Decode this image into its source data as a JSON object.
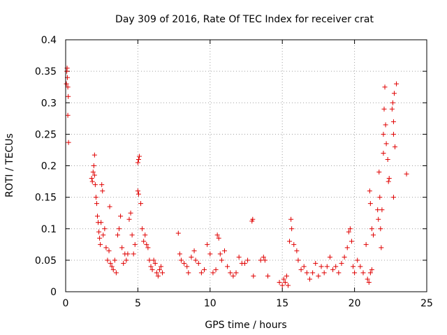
{
  "chart_data": {
    "type": "scatter",
    "title": "Day 309 of 2016, Rate Of TEC Index for receiver crat",
    "xlabel": "GPS time / hours",
    "ylabel": "ROTI / TECUs",
    "xlim": [
      0,
      25
    ],
    "ylim": [
      0,
      0.4
    ],
    "xticks": [
      "0",
      "5",
      "10",
      "15",
      "20",
      "25"
    ],
    "yticks": [
      "0",
      "0.05",
      "0.1",
      "0.15",
      "0.2",
      "0.25",
      "0.3",
      "0.35",
      "0.4"
    ],
    "grid": true,
    "marker": "+",
    "marker_color": "#e00000",
    "series": [
      {
        "name": "ROTI",
        "points": [
          [
            0.05,
            0.33
          ],
          [
            0.08,
            0.35
          ],
          [
            0.1,
            0.355
          ],
          [
            0.12,
            0.34
          ],
          [
            0.15,
            0.325
          ],
          [
            0.18,
            0.31
          ],
          [
            0.15,
            0.28
          ],
          [
            0.2,
            0.237
          ],
          [
            1.8,
            0.18
          ],
          [
            1.85,
            0.175
          ],
          [
            1.9,
            0.19
          ],
          [
            1.95,
            0.2
          ],
          [
            2.0,
            0.217
          ],
          [
            2.0,
            0.185
          ],
          [
            2.05,
            0.17
          ],
          [
            2.1,
            0.15
          ],
          [
            2.15,
            0.14
          ],
          [
            2.2,
            0.12
          ],
          [
            2.25,
            0.11
          ],
          [
            2.3,
            0.095
          ],
          [
            2.35,
            0.085
          ],
          [
            2.4,
            0.075
          ],
          [
            2.45,
            0.11
          ],
          [
            2.5,
            0.17
          ],
          [
            2.55,
            0.16
          ],
          [
            2.6,
            0.09
          ],
          [
            2.7,
            0.1
          ],
          [
            2.8,
            0.07
          ],
          [
            2.9,
            0.05
          ],
          [
            3.0,
            0.065
          ],
          [
            3.05,
            0.135
          ],
          [
            3.1,
            0.045
          ],
          [
            3.2,
            0.04
          ],
          [
            3.3,
            0.035
          ],
          [
            3.4,
            0.05
          ],
          [
            3.5,
            0.03
          ],
          [
            3.6,
            0.09
          ],
          [
            3.7,
            0.1
          ],
          [
            3.8,
            0.12
          ],
          [
            3.9,
            0.07
          ],
          [
            4.0,
            0.045
          ],
          [
            4.1,
            0.06
          ],
          [
            4.2,
            0.05
          ],
          [
            4.3,
            0.06
          ],
          [
            4.4,
            0.115
          ],
          [
            4.5,
            0.125
          ],
          [
            4.6,
            0.09
          ],
          [
            4.7,
            0.06
          ],
          [
            4.8,
            0.075
          ],
          [
            5.0,
            0.205
          ],
          [
            5.05,
            0.21
          ],
          [
            5.1,
            0.215
          ],
          [
            5.0,
            0.16
          ],
          [
            5.05,
            0.155
          ],
          [
            5.2,
            0.14
          ],
          [
            5.3,
            0.1
          ],
          [
            5.4,
            0.08
          ],
          [
            5.5,
            0.09
          ],
          [
            5.6,
            0.075
          ],
          [
            5.7,
            0.07
          ],
          [
            5.8,
            0.05
          ],
          [
            5.9,
            0.04
          ],
          [
            6.0,
            0.035
          ],
          [
            6.1,
            0.05
          ],
          [
            6.2,
            0.045
          ],
          [
            6.3,
            0.03
          ],
          [
            6.4,
            0.025
          ],
          [
            6.5,
            0.035
          ],
          [
            6.6,
            0.04
          ],
          [
            6.7,
            0.03
          ],
          [
            7.8,
            0.093
          ],
          [
            7.9,
            0.06
          ],
          [
            8.0,
            0.05
          ],
          [
            8.2,
            0.045
          ],
          [
            8.4,
            0.04
          ],
          [
            8.5,
            0.03
          ],
          [
            8.7,
            0.055
          ],
          [
            8.9,
            0.065
          ],
          [
            9.0,
            0.05
          ],
          [
            9.2,
            0.045
          ],
          [
            9.4,
            0.03
          ],
          [
            9.6,
            0.035
          ],
          [
            9.8,
            0.075
          ],
          [
            10.0,
            0.06
          ],
          [
            10.2,
            0.03
          ],
          [
            10.4,
            0.035
          ],
          [
            10.5,
            0.09
          ],
          [
            10.6,
            0.085
          ],
          [
            10.7,
            0.06
          ],
          [
            10.8,
            0.05
          ],
          [
            11.0,
            0.065
          ],
          [
            11.2,
            0.04
          ],
          [
            11.4,
            0.03
          ],
          [
            11.6,
            0.025
          ],
          [
            11.8,
            0.03
          ],
          [
            12.0,
            0.055
          ],
          [
            12.2,
            0.045
          ],
          [
            12.4,
            0.045
          ],
          [
            12.6,
            0.05
          ],
          [
            12.9,
            0.112
          ],
          [
            12.95,
            0.115
          ],
          [
            13.0,
            0.025
          ],
          [
            13.5,
            0.05
          ],
          [
            13.7,
            0.055
          ],
          [
            13.8,
            0.05
          ],
          [
            14.0,
            0.025
          ],
          [
            14.8,
            0.015
          ],
          [
            15.0,
            0.01
          ],
          [
            15.1,
            0.02
          ],
          [
            15.2,
            0.015
          ],
          [
            15.3,
            0.025
          ],
          [
            15.4,
            0.01
          ],
          [
            15.5,
            0.08
          ],
          [
            15.6,
            0.115
          ],
          [
            15.65,
            0.1
          ],
          [
            15.8,
            0.075
          ],
          [
            16.0,
            0.065
          ],
          [
            16.1,
            0.05
          ],
          [
            16.3,
            0.035
          ],
          [
            16.5,
            0.04
          ],
          [
            16.7,
            0.03
          ],
          [
            16.9,
            0.02
          ],
          [
            17.1,
            0.03
          ],
          [
            17.3,
            0.045
          ],
          [
            17.5,
            0.025
          ],
          [
            17.7,
            0.04
          ],
          [
            17.9,
            0.03
          ],
          [
            18.1,
            0.04
          ],
          [
            18.3,
            0.055
          ],
          [
            18.5,
            0.035
          ],
          [
            18.7,
            0.04
          ],
          [
            18.9,
            0.03
          ],
          [
            19.1,
            0.045
          ],
          [
            19.3,
            0.055
          ],
          [
            19.5,
            0.07
          ],
          [
            19.6,
            0.095
          ],
          [
            19.7,
            0.1
          ],
          [
            19.8,
            0.08
          ],
          [
            19.9,
            0.04
          ],
          [
            20.0,
            0.03
          ],
          [
            20.2,
            0.05
          ],
          [
            20.4,
            0.04
          ],
          [
            20.6,
            0.03
          ],
          [
            20.8,
            0.075
          ],
          [
            20.9,
            0.02
          ],
          [
            21.0,
            0.015
          ],
          [
            21.1,
            0.03
          ],
          [
            21.2,
            0.035
          ],
          [
            21.05,
            0.16
          ],
          [
            21.1,
            0.14
          ],
          [
            21.2,
            0.1
          ],
          [
            21.3,
            0.09
          ],
          [
            21.6,
            0.13
          ],
          [
            21.65,
            0.115
          ],
          [
            21.7,
            0.19
          ],
          [
            21.75,
            0.15
          ],
          [
            21.8,
            0.1
          ],
          [
            21.85,
            0.07
          ],
          [
            21.9,
            0.13
          ],
          [
            22.0,
            0.22
          ],
          [
            22.0,
            0.25
          ],
          [
            22.05,
            0.29
          ],
          [
            22.1,
            0.325
          ],
          [
            22.15,
            0.265
          ],
          [
            22.2,
            0.235
          ],
          [
            22.3,
            0.21
          ],
          [
            22.35,
            0.175
          ],
          [
            22.4,
            0.18
          ],
          [
            22.6,
            0.29
          ],
          [
            22.65,
            0.3
          ],
          [
            22.7,
            0.27
          ],
          [
            22.75,
            0.315
          ],
          [
            22.7,
            0.25
          ],
          [
            22.8,
            0.23
          ],
          [
            22.9,
            0.33
          ],
          [
            22.7,
            0.15
          ],
          [
            23.6,
            0.187
          ]
        ]
      }
    ]
  }
}
